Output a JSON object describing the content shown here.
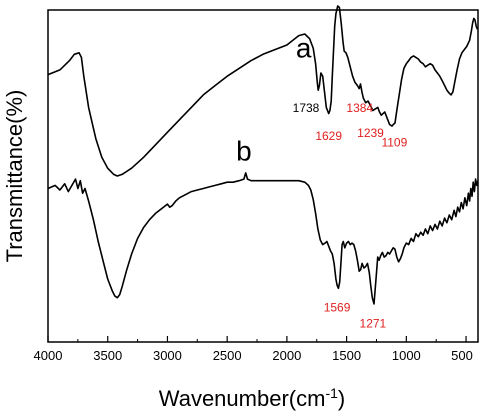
{
  "chart_data": {
    "type": "line",
    "xlabel": "Wavenumber(cm",
    "xlabel_sup": "-1",
    "xlabel_close": ")",
    "ylabel": "Transmittance(%)",
    "xlim": [
      4000,
      400
    ],
    "ylim": [
      0,
      100
    ],
    "x_reversed": true,
    "y_tick_labels": false,
    "grid": false,
    "x_ticks": [
      {
        "value": 4000,
        "label": "4000"
      },
      {
        "value": 3500,
        "label": "3500"
      },
      {
        "value": 3000,
        "label": "3000"
      },
      {
        "value": 2500,
        "label": "2500"
      },
      {
        "value": 2000,
        "label": "2000"
      },
      {
        "value": 1500,
        "label": "1500"
      },
      {
        "value": 1000,
        "label": "1000"
      },
      {
        "value": 500,
        "label": "500"
      }
    ],
    "series": [
      {
        "name": "a",
        "color": "#000000",
        "label_at": {
          "x": 1860,
          "y": 88
        },
        "points": [
          [
            4000,
            82.5
          ],
          [
            3900,
            84
          ],
          [
            3820,
            87
          ],
          [
            3780,
            89
          ],
          [
            3740,
            89.5
          ],
          [
            3720,
            88
          ],
          [
            3700,
            82
          ],
          [
            3660,
            72
          ],
          [
            3600,
            62
          ],
          [
            3550,
            56
          ],
          [
            3500,
            52.5
          ],
          [
            3450,
            50.5
          ],
          [
            3420,
            50
          ],
          [
            3380,
            50.5
          ],
          [
            3300,
            52.5
          ],
          [
            3200,
            56
          ],
          [
            3100,
            60
          ],
          [
            3000,
            64
          ],
          [
            2900,
            68
          ],
          [
            2800,
            72
          ],
          [
            2700,
            76
          ],
          [
            2600,
            79
          ],
          [
            2500,
            82
          ],
          [
            2400,
            84.5
          ],
          [
            2300,
            87
          ],
          [
            2200,
            89
          ],
          [
            2100,
            90.5
          ],
          [
            2000,
            92
          ],
          [
            1950,
            93.5
          ],
          [
            1900,
            95
          ],
          [
            1850,
            95.5
          ],
          [
            1810,
            94
          ],
          [
            1780,
            91
          ],
          [
            1760,
            86
          ],
          [
            1745,
            80
          ],
          [
            1738,
            77.5
          ],
          [
            1728,
            79
          ],
          [
            1715,
            83
          ],
          [
            1700,
            82
          ],
          [
            1685,
            77
          ],
          [
            1670,
            72
          ],
          [
            1650,
            70
          ],
          [
            1640,
            71
          ],
          [
            1629,
            74
          ],
          [
            1620,
            82
          ],
          [
            1610,
            90
          ],
          [
            1600,
            98
          ],
          [
            1590,
            102
          ],
          [
            1575,
            104.5
          ],
          [
            1560,
            104
          ],
          [
            1545,
            99
          ],
          [
            1530,
            93
          ],
          [
            1520,
            90
          ],
          [
            1505,
            89.5
          ],
          [
            1490,
            88
          ],
          [
            1470,
            85
          ],
          [
            1450,
            82
          ],
          [
            1430,
            80
          ],
          [
            1410,
            79
          ],
          [
            1395,
            78
          ],
          [
            1384,
            79.5
          ],
          [
            1372,
            77
          ],
          [
            1360,
            75
          ],
          [
            1340,
            73.5
          ],
          [
            1320,
            74
          ],
          [
            1300,
            72.5
          ],
          [
            1280,
            71
          ],
          [
            1260,
            71.5
          ],
          [
            1239,
            72
          ],
          [
            1225,
            70.5
          ],
          [
            1210,
            69.5
          ],
          [
            1195,
            70
          ],
          [
            1180,
            70.5
          ],
          [
            1160,
            68.5
          ],
          [
            1140,
            66.5
          ],
          [
            1120,
            66
          ],
          [
            1109,
            66.5
          ],
          [
            1095,
            67
          ],
          [
            1080,
            71
          ],
          [
            1060,
            76
          ],
          [
            1040,
            81
          ],
          [
            1020,
            84.5
          ],
          [
            1000,
            86
          ],
          [
            980,
            87
          ],
          [
            960,
            88
          ],
          [
            940,
            88.5
          ],
          [
            920,
            88
          ],
          [
            900,
            87.5
          ],
          [
            880,
            86.5
          ],
          [
            860,
            86
          ],
          [
            840,
            85
          ],
          [
            820,
            85.5
          ],
          [
            800,
            86
          ],
          [
            780,
            85.5
          ],
          [
            760,
            84
          ],
          [
            740,
            83
          ],
          [
            720,
            82
          ],
          [
            700,
            80.5
          ],
          [
            680,
            79
          ],
          [
            660,
            77.5
          ],
          [
            640,
            76.5
          ],
          [
            625,
            76
          ],
          [
            610,
            77
          ],
          [
            595,
            80
          ],
          [
            575,
            84
          ],
          [
            555,
            87.5
          ],
          [
            535,
            89.5
          ],
          [
            515,
            90.5
          ],
          [
            495,
            91.5
          ],
          [
            470,
            93.5
          ],
          [
            455,
            96.5
          ],
          [
            445,
            99
          ],
          [
            435,
            100.5
          ],
          [
            425,
            100
          ],
          [
            415,
            98
          ],
          [
            405,
            97
          ]
        ]
      },
      {
        "name": "b",
        "color": "#000000",
        "label_at": {
          "x": 2360,
          "y": 55
        },
        "points": [
          [
            4000,
            46
          ],
          [
            3940,
            47
          ],
          [
            3900,
            45.5
          ],
          [
            3860,
            47.5
          ],
          [
            3830,
            45
          ],
          [
            3800,
            47
          ],
          [
            3770,
            49
          ],
          [
            3750,
            46
          ],
          [
            3730,
            48.5
          ],
          [
            3710,
            44.5
          ],
          [
            3690,
            46
          ],
          [
            3660,
            42
          ],
          [
            3620,
            36
          ],
          [
            3580,
            29
          ],
          [
            3540,
            23
          ],
          [
            3500,
            17
          ],
          [
            3460,
            13
          ],
          [
            3440,
            11.5
          ],
          [
            3420,
            11
          ],
          [
            3400,
            12
          ],
          [
            3380,
            14.5
          ],
          [
            3340,
            20
          ],
          [
            3300,
            25
          ],
          [
            3250,
            30
          ],
          [
            3200,
            33.5
          ],
          [
            3150,
            36
          ],
          [
            3100,
            38
          ],
          [
            3050,
            39.5
          ],
          [
            3000,
            41
          ],
          [
            2980,
            40
          ],
          [
            2960,
            40.5
          ],
          [
            2930,
            42
          ],
          [
            2900,
            43
          ],
          [
            2850,
            44
          ],
          [
            2800,
            45
          ],
          [
            2750,
            45.5
          ],
          [
            2700,
            46
          ],
          [
            2650,
            46.5
          ],
          [
            2600,
            47
          ],
          [
            2550,
            47.5
          ],
          [
            2500,
            48
          ],
          [
            2450,
            48
          ],
          [
            2400,
            48.5
          ],
          [
            2360,
            49
          ],
          [
            2345,
            51
          ],
          [
            2330,
            49
          ],
          [
            2300,
            48.5
          ],
          [
            2250,
            48.5
          ],
          [
            2200,
            48.5
          ],
          [
            2150,
            48.5
          ],
          [
            2100,
            48.5
          ],
          [
            2050,
            48.5
          ],
          [
            2000,
            48.5
          ],
          [
            1950,
            48.5
          ],
          [
            1900,
            48.5
          ],
          [
            1850,
            48
          ],
          [
            1820,
            47
          ],
          [
            1800,
            45.5
          ],
          [
            1780,
            42.5
          ],
          [
            1760,
            38
          ],
          [
            1740,
            33
          ],
          [
            1720,
            29.5
          ],
          [
            1700,
            28
          ],
          [
            1680,
            28.5
          ],
          [
            1665,
            29
          ],
          [
            1650,
            27.5
          ],
          [
            1635,
            26
          ],
          [
            1620,
            25
          ],
          [
            1605,
            22
          ],
          [
            1590,
            17
          ],
          [
            1580,
            15
          ],
          [
            1569,
            14
          ],
          [
            1558,
            16
          ],
          [
            1548,
            22
          ],
          [
            1538,
            28
          ],
          [
            1528,
            29
          ],
          [
            1515,
            27
          ],
          [
            1500,
            28.5
          ],
          [
            1485,
            29
          ],
          [
            1470,
            28
          ],
          [
            1455,
            28.5
          ],
          [
            1440,
            28
          ],
          [
            1425,
            26
          ],
          [
            1410,
            23
          ],
          [
            1395,
            19.5
          ],
          [
            1382,
            20
          ],
          [
            1370,
            22
          ],
          [
            1355,
            20.5
          ],
          [
            1340,
            21
          ],
          [
            1325,
            22
          ],
          [
            1310,
            19
          ],
          [
            1298,
            15
          ],
          [
            1285,
            11
          ],
          [
            1271,
            9
          ],
          [
            1262,
            13
          ],
          [
            1250,
            19
          ],
          [
            1240,
            24
          ],
          [
            1228,
            23
          ],
          [
            1215,
            24.5
          ],
          [
            1200,
            25.5
          ],
          [
            1185,
            24
          ],
          [
            1170,
            24.5
          ],
          [
            1155,
            25.5
          ],
          [
            1140,
            25
          ],
          [
            1125,
            26
          ],
          [
            1110,
            27
          ],
          [
            1095,
            26.5
          ],
          [
            1080,
            24
          ],
          [
            1065,
            22.5
          ],
          [
            1050,
            23.5
          ],
          [
            1035,
            25
          ],
          [
            1020,
            27
          ],
          [
            1000,
            28.5
          ],
          [
            980,
            28
          ],
          [
            960,
            30
          ],
          [
            940,
            29
          ],
          [
            920,
            31.5
          ],
          [
            900,
            30.5
          ],
          [
            880,
            32
          ],
          [
            860,
            31
          ],
          [
            840,
            33
          ],
          [
            820,
            31.5
          ],
          [
            800,
            34
          ],
          [
            780,
            32.5
          ],
          [
            760,
            34.5
          ],
          [
            740,
            33
          ],
          [
            720,
            35.5
          ],
          [
            700,
            34
          ],
          [
            680,
            36.5
          ],
          [
            660,
            35
          ],
          [
            640,
            37.5
          ],
          [
            620,
            36
          ],
          [
            600,
            39
          ],
          [
            585,
            37
          ],
          [
            570,
            40
          ],
          [
            555,
            38.5
          ],
          [
            540,
            41.5
          ],
          [
            525,
            39.5
          ],
          [
            510,
            43
          ],
          [
            495,
            40.5
          ],
          [
            480,
            44.5
          ],
          [
            470,
            42
          ],
          [
            460,
            46
          ],
          [
            450,
            43.5
          ],
          [
            440,
            48
          ],
          [
            430,
            45
          ],
          [
            420,
            49
          ],
          [
            410,
            47
          ],
          [
            400,
            48.5
          ]
        ]
      }
    ],
    "annotations": [
      {
        "text": "1738",
        "color": "#000000",
        "x": 1840,
        "y": 70.5
      },
      {
        "text": "1384",
        "color": "#e02020",
        "x": 1390,
        "y": 70.5
      },
      {
        "text": "1629",
        "color": "#e02020",
        "x": 1650,
        "y": 61.5
      },
      {
        "text": "1239",
        "color": "#e02020",
        "x": 1300,
        "y": 62.5
      },
      {
        "text": "1109",
        "color": "#e02020",
        "x": 1100,
        "y": 59.5
      },
      {
        "text": "1569",
        "color": "#e02020",
        "x": 1580,
        "y": 6.5
      },
      {
        "text": "1271",
        "color": "#e02020",
        "x": 1280,
        "y": 1.5
      }
    ]
  }
}
